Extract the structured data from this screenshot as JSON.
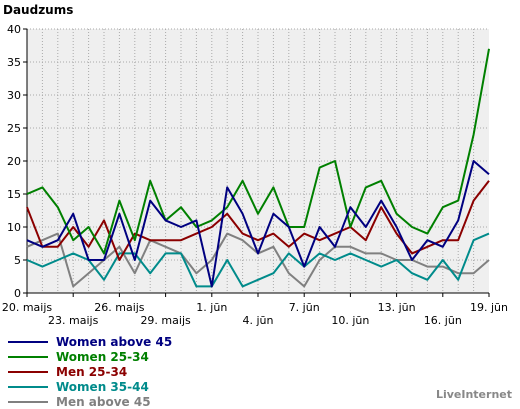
{
  "chart_data": {
    "type": "line",
    "ylabel": "Daudzums",
    "ylim": [
      0,
      40
    ],
    "yticks": [
      0,
      5,
      10,
      15,
      20,
      25,
      30,
      35,
      40
    ],
    "grid": true,
    "legend_position": "bottom-left",
    "x": [
      "20. maijs",
      "21. maijs",
      "22. maijs",
      "23. maijs",
      "24. maijs",
      "25. maijs",
      "26. maijs",
      "27. maijs",
      "28. maijs",
      "29. maijs",
      "30. maijs",
      "31. maijs",
      "1. jūn",
      "2. jūn",
      "3. jūn",
      "4. jūn",
      "5. jūn",
      "6. jūn",
      "7. jūn",
      "8. jūn",
      "9. jūn",
      "10. jūn",
      "11. jūn",
      "12. jūn",
      "13. jūn",
      "14. jūn",
      "15. jūn",
      "16. jūn",
      "17. jūn",
      "18. jūn",
      "19. jūn"
    ],
    "xtick_labels": [
      {
        "label": "20. maijs",
        "index": 0,
        "row": 0
      },
      {
        "label": "23. maijs",
        "index": 3,
        "row": 1
      },
      {
        "label": "26. maijs",
        "index": 6,
        "row": 0
      },
      {
        "label": "29. maijs",
        "index": 9,
        "row": 1
      },
      {
        "label": "1. jūn",
        "index": 12,
        "row": 0
      },
      {
        "label": "4. jūn",
        "index": 15,
        "row": 1
      },
      {
        "label": "7. jūn",
        "index": 18,
        "row": 0
      },
      {
        "label": "10. jūn",
        "index": 21,
        "row": 1
      },
      {
        "label": "13. jūn",
        "index": 24,
        "row": 0
      },
      {
        "label": "16. jūn",
        "index": 27,
        "row": 1
      },
      {
        "label": "19. jūn",
        "index": 30,
        "row": 0
      }
    ],
    "series": [
      {
        "name": "Women above 45",
        "color": "#000080",
        "values": [
          8,
          7,
          8,
          12,
          5,
          5,
          12,
          5,
          14,
          11,
          10,
          11,
          1,
          16,
          12,
          6,
          12,
          10,
          4,
          10,
          7,
          13,
          10,
          14,
          10,
          5,
          8,
          7,
          11,
          20,
          18
        ]
      },
      {
        "name": "Women 25-34",
        "color": "#008000",
        "values": [
          15,
          16,
          13,
          8,
          10,
          6,
          14,
          8,
          17,
          11,
          13,
          10,
          11,
          13,
          17,
          12,
          16,
          10,
          10,
          19,
          20,
          10,
          16,
          17,
          12,
          10,
          9,
          13,
          14,
          24,
          37
        ]
      },
      {
        "name": "Men 25-34",
        "color": "#8b0000",
        "values": [
          13,
          7,
          7,
          10,
          7,
          11,
          5,
          9,
          8,
          8,
          8,
          9,
          10,
          12,
          9,
          8,
          9,
          7,
          9,
          8,
          9,
          10,
          8,
          13,
          9,
          6,
          7,
          8,
          8,
          14,
          17
        ]
      },
      {
        "name": "Women 35-44",
        "color": "#008b8b",
        "values": [
          5,
          4,
          5,
          6,
          5,
          2,
          6,
          6,
          3,
          6,
          6,
          1,
          1,
          5,
          1,
          2,
          3,
          6,
          4,
          6,
          5,
          6,
          5,
          4,
          5,
          3,
          2,
          5,
          2,
          8,
          9
        ]
      },
      {
        "name": "Men above 45",
        "color": "#808080",
        "values": [
          7,
          8,
          9,
          1,
          3,
          5,
          7,
          3,
          8,
          7,
          6,
          3,
          5,
          9,
          8,
          6,
          7,
          3,
          1,
          5,
          7,
          7,
          6,
          6,
          5,
          5,
          4,
          4,
          3,
          3,
          5
        ]
      }
    ]
  },
  "footer": {
    "credit": "LiveInternet"
  }
}
